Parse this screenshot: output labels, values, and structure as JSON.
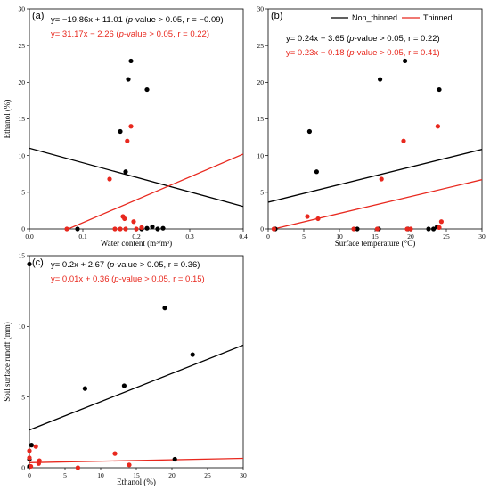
{
  "chart_data": [
    {
      "type": "scatter",
      "panel_label": "(a)",
      "xlabel": "Water content (m³/m³)",
      "ylabel": "Ethanol (%)",
      "xlim": [
        0,
        0.4
      ],
      "ylim": [
        0,
        30
      ],
      "x_ticks": [
        0.0,
        0.1,
        0.2,
        0.3,
        0.4
      ],
      "x_tick_labels": [
        "0.0",
        "0.1",
        "0.2",
        "0.3",
        "0.4"
      ],
      "y_ticks": [
        0,
        5,
        10,
        15,
        20,
        25,
        30
      ],
      "y_tick_labels": [
        "0",
        "5",
        "10",
        "15",
        "20",
        "25",
        "30"
      ],
      "series": [
        {
          "name": "Non_thinned",
          "color": "#000000",
          "points": [
            [
              0.09,
              0
            ],
            [
              0.17,
              13.3
            ],
            [
              0.18,
              7.8
            ],
            [
              0.185,
              20.4
            ],
            [
              0.19,
              22.9
            ],
            [
              0.22,
              19
            ],
            [
              0.21,
              0
            ],
            [
              0.22,
              0.1
            ],
            [
              0.23,
              0.3
            ],
            [
              0.24,
              0
            ],
            [
              0.25,
              0.1
            ]
          ],
          "fit": {
            "slope": -19.86,
            "intercept": 11.01
          },
          "equation": "y= −19.86x + 11.01 (p-value > 0.05, r = −0.09)"
        },
        {
          "name": "Thinned",
          "color": "#e8281e",
          "points": [
            [
              0.07,
              0
            ],
            [
              0.15,
              6.8
            ],
            [
              0.16,
              0
            ],
            [
              0.17,
              0
            ],
            [
              0.175,
              1.7
            ],
            [
              0.178,
              1.4
            ],
            [
              0.18,
              0
            ],
            [
              0.183,
              12
            ],
            [
              0.19,
              14
            ],
            [
              0.195,
              1
            ],
            [
              0.2,
              0
            ],
            [
              0.21,
              0.2
            ]
          ],
          "fit": {
            "slope": 31.17,
            "intercept": -2.26
          },
          "equation": "y= 31.17x − 2.26 (p-value > 0.05, r = 0.22)"
        }
      ]
    },
    {
      "type": "scatter",
      "panel_label": "(b)",
      "xlabel": "Surface temperature (°C)",
      "ylabel": "",
      "xlim": [
        0,
        30
      ],
      "ylim": [
        0,
        30
      ],
      "x_ticks": [
        0,
        5,
        10,
        15,
        20,
        25,
        30
      ],
      "x_tick_labels": [
        "0",
        "5",
        "10",
        "15",
        "20",
        "25",
        "30"
      ],
      "y_ticks": [
        0,
        5,
        10,
        15,
        20,
        25,
        30
      ],
      "y_tick_labels": [
        "0",
        "5",
        "10",
        "15",
        "20",
        "25",
        "30"
      ],
      "legend": {
        "position": "top-right",
        "entries": [
          "Non_thinned",
          "Thinned"
        ]
      },
      "series": [
        {
          "name": "Non_thinned",
          "color": "#000000",
          "points": [
            [
              1,
              0
            ],
            [
              5.8,
              13.3
            ],
            [
              6.8,
              7.8
            ],
            [
              12.5,
              0
            ],
            [
              15.5,
              0
            ],
            [
              15.7,
              20.4
            ],
            [
              19.2,
              22.9
            ],
            [
              19.6,
              0
            ],
            [
              22.5,
              0
            ],
            [
              23.2,
              0
            ],
            [
              23.7,
              0.3
            ],
            [
              24,
              19
            ]
          ],
          "fit": {
            "slope": 0.24,
            "intercept": 3.65
          },
          "equation": "y= 0.24x + 3.65 (p-value > 0.05, r = 0.22)"
        },
        {
          "name": "Thinned",
          "color": "#e8281e",
          "points": [
            [
              0.8,
              0
            ],
            [
              5.5,
              1.7
            ],
            [
              7,
              1.4
            ],
            [
              12,
              0
            ],
            [
              15.3,
              0
            ],
            [
              15.9,
              6.8
            ],
            [
              19,
              12
            ],
            [
              19.5,
              0
            ],
            [
              20,
              0
            ],
            [
              23.8,
              14
            ],
            [
              24,
              0.2
            ],
            [
              24.3,
              1
            ]
          ],
          "fit": {
            "slope": 0.23,
            "intercept": -0.18
          },
          "equation": "y= 0.23x − 0.18 (p-value > 0.05, r = 0.41)"
        }
      ]
    },
    {
      "type": "scatter",
      "panel_label": "(c)",
      "xlabel": "Ethanol (%)",
      "ylabel": "Soil surface runoff (mm)",
      "xlim": [
        0,
        30
      ],
      "ylim": [
        0,
        15
      ],
      "x_ticks": [
        0,
        5,
        10,
        15,
        20,
        25,
        30
      ],
      "x_tick_labels": [
        "0",
        "5",
        "10",
        "15",
        "20",
        "25",
        "30"
      ],
      "y_ticks": [
        0,
        5,
        10,
        15
      ],
      "y_tick_labels": [
        "0",
        "5",
        "10",
        "15"
      ],
      "series": [
        {
          "name": "Non_thinned",
          "color": "#000000",
          "points": [
            [
              0,
              14.4
            ],
            [
              0.3,
              1.6
            ],
            [
              0,
              0.6
            ],
            [
              0,
              0.1
            ],
            [
              7.8,
              5.6
            ],
            [
              13.3,
              5.8
            ],
            [
              19,
              11.3
            ],
            [
              22.9,
              8
            ],
            [
              20.4,
              0.6
            ]
          ],
          "fit": {
            "slope": 0.2,
            "intercept": 2.67
          },
          "equation": "y= 0.2x + 2.67 (p-value > 0.05, r = 0.36)"
        },
        {
          "name": "Thinned",
          "color": "#e8281e",
          "points": [
            [
              0,
              1.2
            ],
            [
              0.9,
              1.5
            ],
            [
              0,
              0.7
            ],
            [
              1.4,
              0.5
            ],
            [
              1.3,
              0.3
            ],
            [
              0.2,
              0.1
            ],
            [
              6.8,
              0
            ],
            [
              12,
              1
            ],
            [
              14,
              0.2
            ]
          ],
          "fit": {
            "slope": 0.01,
            "intercept": 0.36
          },
          "equation": "y= 0.01x + 0.36 (p-value > 0.05, r = 0.15)"
        }
      ]
    }
  ]
}
